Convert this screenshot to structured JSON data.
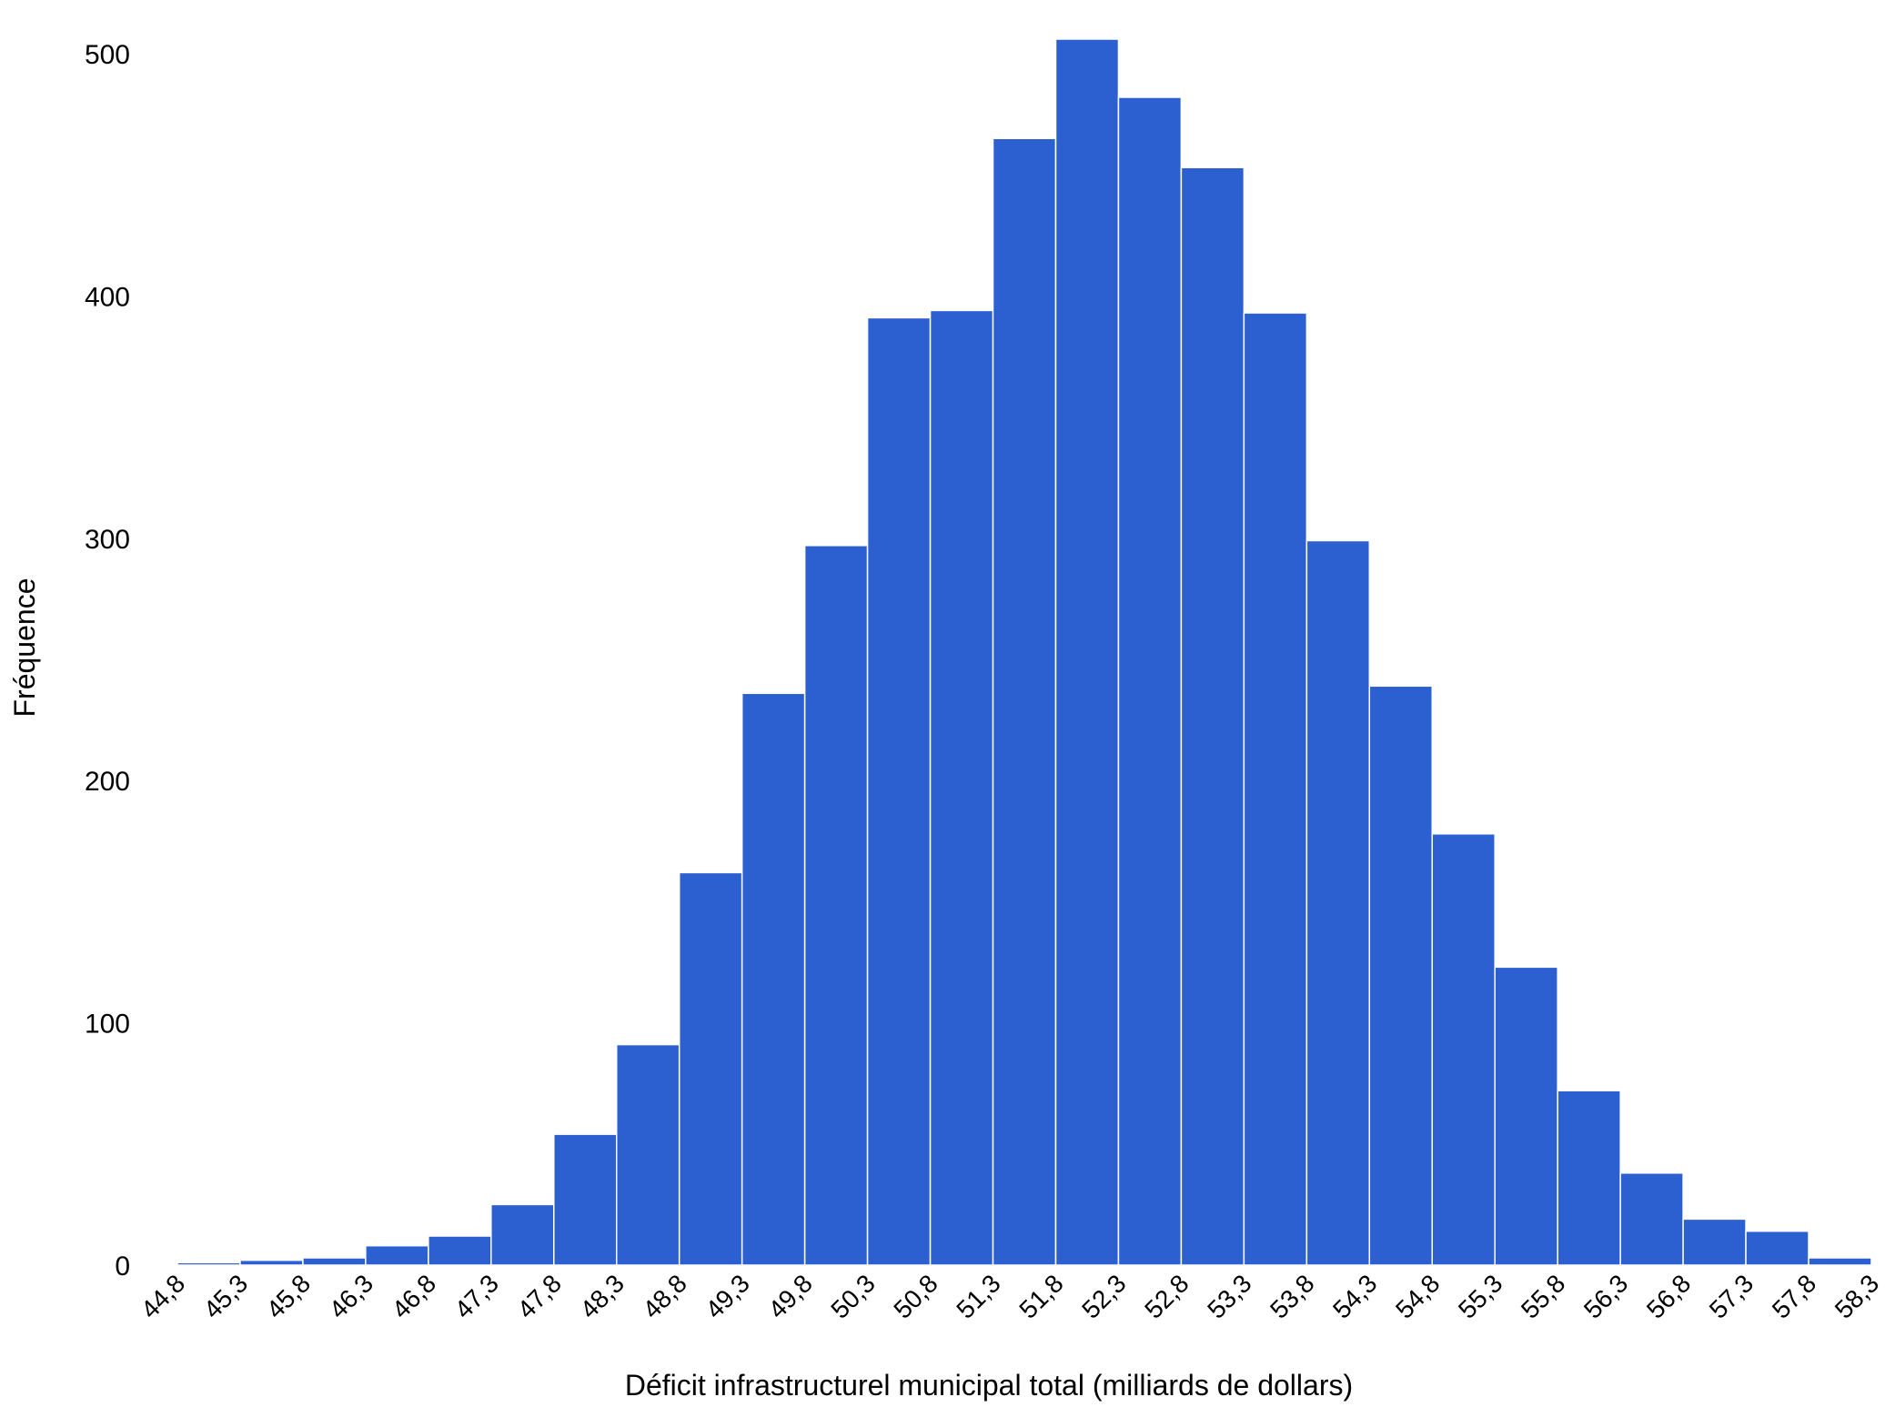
{
  "colors": {
    "bar_fill": "#2C5FD0",
    "bar_edge": "#ffffff",
    "background": "#ffffff",
    "text": "#000000"
  },
  "chart_data": {
    "type": "bar",
    "title": "",
    "xlabel": "Déficit infrastructurel municipal total (milliards de dollars)",
    "ylabel": "Fréquence",
    "grid": false,
    "legend": "none",
    "ylim": [
      0,
      505
    ],
    "yticks": [
      0,
      100,
      200,
      300,
      400,
      500
    ],
    "ytick_labels": [
      "0",
      "100",
      "200",
      "300",
      "400",
      "500"
    ],
    "bin_edges": [
      44.8,
      45.3,
      45.8,
      46.3,
      46.8,
      47.3,
      47.8,
      48.3,
      48.8,
      49.3,
      49.8,
      50.3,
      50.8,
      51.3,
      51.8,
      52.3,
      52.8,
      53.3,
      53.8,
      54.3,
      54.8,
      55.3,
      55.8,
      56.3,
      56.8,
      57.3,
      57.8,
      58.3
    ],
    "xtick_labels": [
      "44,8",
      "45,3",
      "45,8",
      "46,3",
      "46,8",
      "47,3",
      "47,8",
      "48,3",
      "48,8",
      "49,3",
      "49,8",
      "50,3",
      "50,8",
      "51,3",
      "51,8",
      "52,3",
      "52,8",
      "53,3",
      "53,8",
      "54,3",
      "54,8",
      "55,3",
      "55,8",
      "56,3",
      "56,8",
      "57,3",
      "57,8",
      "58,3"
    ],
    "values": [
      1,
      2,
      3,
      8,
      12,
      25,
      54,
      91,
      162,
      236,
      297,
      391,
      394,
      465,
      506,
      482,
      453,
      393,
      299,
      239,
      178,
      123,
      72,
      38,
      19,
      14,
      3
    ]
  }
}
